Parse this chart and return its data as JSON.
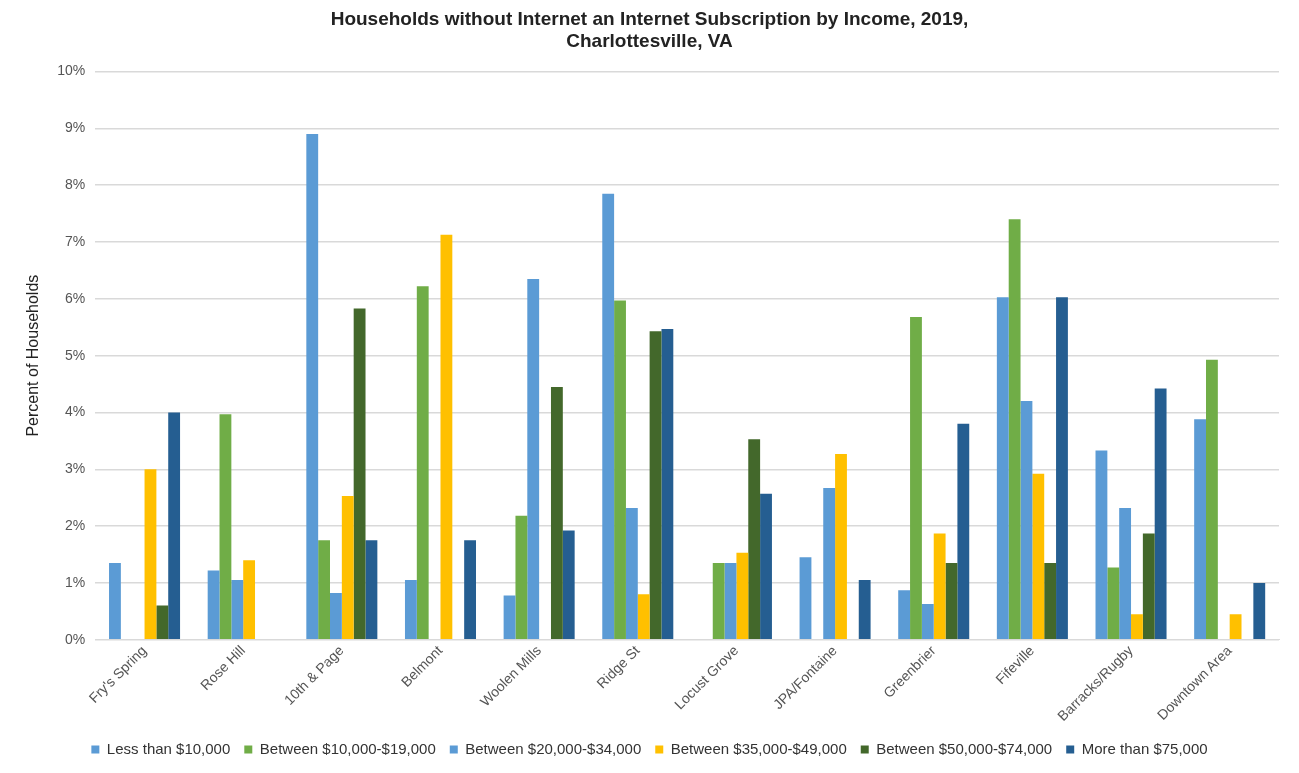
{
  "chart_data": {
    "type": "bar",
    "title": "Households without Internet an Internet Subscription by Income, 2019,\nCharlottesville, VA",
    "ylabel": "Percent of Households",
    "categories": [
      "Fry's Spring",
      "Rose Hill",
      "10th & Page",
      "Belmont",
      "Woolen Mills",
      "Ridge St",
      "Locust Grove",
      "JPA/Fontaine",
      "Greenbrier",
      "Fifeville",
      "Barracks/Rugby",
      "Downtown Area"
    ],
    "series": [
      {
        "name": "Less than $10,000",
        "color": "#5b9bd5",
        "values": [
          1.35,
          1.22,
          8.9,
          1.05,
          0.78,
          7.85,
          null,
          1.45,
          0.87,
          6.03,
          3.33,
          3.88
        ]
      },
      {
        "name": "Between $10,000-$19,000",
        "color": "#70ad47",
        "values": [
          null,
          3.97,
          1.75,
          6.22,
          2.18,
          5.97,
          1.35,
          null,
          5.68,
          7.4,
          1.27,
          4.93
        ]
      },
      {
        "name": "Between $20,000-$34,000",
        "color": "#5b9bd5",
        "values": [
          null,
          1.05,
          0.82,
          null,
          6.35,
          2.32,
          1.35,
          2.67,
          0.63,
          4.2,
          2.32,
          null
        ]
      },
      {
        "name": "Between $35,000-$49,000",
        "color": "#ffc000",
        "values": [
          3.0,
          1.4,
          2.53,
          7.13,
          null,
          0.8,
          1.53,
          3.27,
          1.87,
          2.92,
          0.45,
          0.45
        ]
      },
      {
        "name": "Between $50,000-$74,000",
        "color": "#43682b",
        "values": [
          0.6,
          null,
          5.83,
          null,
          4.45,
          5.43,
          3.53,
          null,
          1.35,
          1.35,
          1.87,
          null
        ]
      },
      {
        "name": "More than $75,000",
        "color": "#255e91",
        "values": [
          4.0,
          null,
          1.75,
          1.75,
          1.92,
          5.47,
          2.57,
          1.05,
          3.8,
          6.03,
          4.42,
          1.0
        ]
      }
    ],
    "ylim": [
      0,
      10
    ],
    "yticks": [
      {
        "value": 0,
        "label": "0%"
      },
      {
        "value": 1,
        "label": "1%"
      },
      {
        "value": 2,
        "label": "2%"
      },
      {
        "value": 3,
        "label": "3%"
      },
      {
        "value": 4,
        "label": "4%"
      },
      {
        "value": 5,
        "label": "5%"
      },
      {
        "value": 6,
        "label": "6%"
      },
      {
        "value": 7,
        "label": "7%"
      },
      {
        "value": 8,
        "label": "8%"
      },
      {
        "value": 9,
        "label": "9%"
      },
      {
        "value": 10,
        "label": "10%"
      }
    ],
    "grid": "y",
    "legend": "bottom"
  }
}
